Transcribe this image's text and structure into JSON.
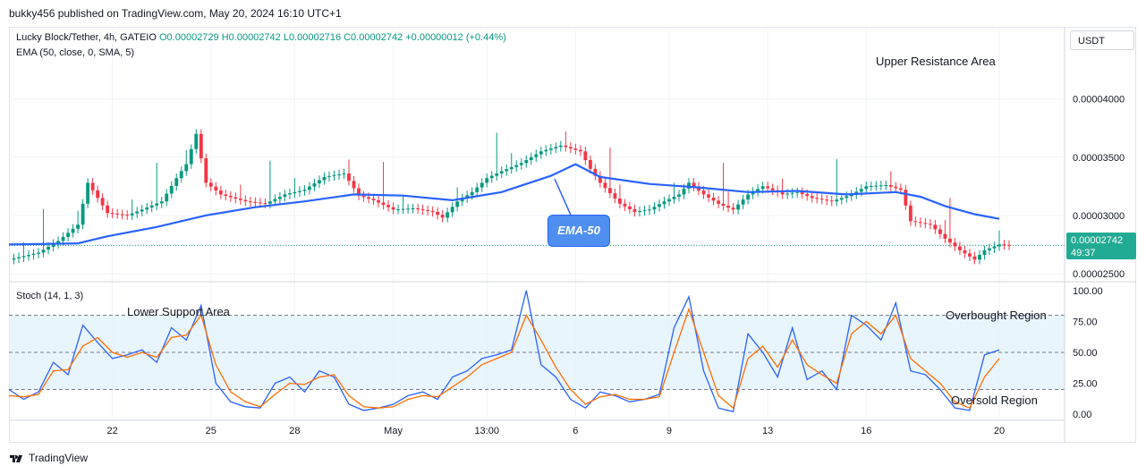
{
  "header": {
    "published": "bukky456 published on TradingView.com, May 20, 2024 16:10 UTC+1"
  },
  "legend": {
    "symbol": "Lucky Block/Tether, 4h, GATEIO",
    "ohlc": "O0.00002729 H0.00002742 L0.00002716 C0.00002742 +0.00000012 (+0.44%)",
    "indicator": "EMA (50, close, 0, SMA, 5)",
    "stoch": "Stoch (14, 1, 3)"
  },
  "currency_button": "USDT",
  "price_tag": {
    "price": "0.00002742",
    "countdown": "49:37"
  },
  "annotations": {
    "upper_resistance": "Upper Resistance Area",
    "lower_support": "Lower Support Area",
    "ema_callout": "EMA-50",
    "overbought": "Overbought Region",
    "oversold": "Oversold Region"
  },
  "footer": {
    "brand": "TradingView"
  },
  "colors": {
    "up": "#089981",
    "down": "#f23645",
    "ema": "#2962ff",
    "stoch_k": "#2962ff",
    "stoch_d": "#ff6d00",
    "band": "#e3f2fd"
  },
  "chart_data": [
    {
      "type": "candlestick",
      "title": "Lucky Block/Tether, 4h, GATEIO",
      "y_ticks": [
        "0.00004000",
        "0.00003500",
        "0.00003000",
        "0.00002500"
      ],
      "y_tick_values": [
        4e-05,
        3.5e-05,
        3e-05,
        2.5e-05
      ],
      "ylim": [
        2.43e-05,
        4.62e-05
      ],
      "x_ticks": [
        "22",
        "25",
        "28",
        "May",
        "13:00",
        "6",
        "9",
        "13",
        "16",
        "20"
      ],
      "x_tick_index": [
        21,
        41,
        58,
        78,
        97,
        115,
        134,
        154,
        174,
        201
      ],
      "last_close": 2.742e-05,
      "close_path": [
        [
          0,
          2.62
        ],
        [
          6,
          2.68
        ],
        [
          10,
          2.78
        ],
        [
          14,
          2.92
        ],
        [
          16,
          3.28
        ],
        [
          20,
          3.02
        ],
        [
          24,
          3.0
        ],
        [
          27,
          3.05
        ],
        [
          31,
          3.12
        ],
        [
          34,
          3.32
        ],
        [
          36,
          3.44
        ],
        [
          38,
          3.7
        ],
        [
          40,
          3.28
        ],
        [
          43,
          3.18
        ],
        [
          48,
          3.12
        ],
        [
          52,
          3.1
        ],
        [
          56,
          3.18
        ],
        [
          60,
          3.22
        ],
        [
          64,
          3.33
        ],
        [
          68,
          3.36
        ],
        [
          71,
          3.17
        ],
        [
          74,
          3.13
        ],
        [
          78,
          3.05
        ],
        [
          82,
          3.06
        ],
        [
          86,
          3.03
        ],
        [
          88,
          2.98
        ],
        [
          91,
          3.12
        ],
        [
          94,
          3.2
        ],
        [
          97,
          3.32
        ],
        [
          100,
          3.38
        ],
        [
          104,
          3.45
        ],
        [
          108,
          3.55
        ],
        [
          112,
          3.6
        ],
        [
          116,
          3.55
        ],
        [
          118,
          3.4
        ],
        [
          120,
          3.28
        ],
        [
          124,
          3.1
        ],
        [
          127,
          3.03
        ],
        [
          130,
          3.05
        ],
        [
          133,
          3.12
        ],
        [
          136,
          3.18
        ],
        [
          138,
          3.28
        ],
        [
          141,
          3.18
        ],
        [
          144,
          3.1
        ],
        [
          147,
          3.05
        ],
        [
          150,
          3.18
        ],
        [
          153,
          3.25
        ],
        [
          157,
          3.18
        ],
        [
          160,
          3.2
        ],
        [
          163,
          3.15
        ],
        [
          167,
          3.12
        ],
        [
          171,
          3.18
        ],
        [
          174,
          3.25
        ],
        [
          178,
          3.26
        ],
        [
          181,
          3.22
        ],
        [
          183,
          2.95
        ],
        [
          187,
          2.92
        ],
        [
          190,
          2.8
        ],
        [
          193,
          2.7
        ],
        [
          196,
          2.62
        ],
        [
          198,
          2.7
        ],
        [
          201,
          2.75
        ],
        [
          203,
          2.742
        ]
      ],
      "ema_50_path": [
        [
          0,
          2.75
        ],
        [
          14,
          2.76
        ],
        [
          20,
          2.82
        ],
        [
          30,
          2.9
        ],
        [
          40,
          3.0
        ],
        [
          50,
          3.07
        ],
        [
          60,
          3.12
        ],
        [
          70,
          3.18
        ],
        [
          80,
          3.17
        ],
        [
          90,
          3.13
        ],
        [
          100,
          3.2
        ],
        [
          110,
          3.34
        ],
        [
          115,
          3.44
        ],
        [
          120,
          3.33
        ],
        [
          130,
          3.27
        ],
        [
          140,
          3.24
        ],
        [
          150,
          3.2
        ],
        [
          160,
          3.21
        ],
        [
          170,
          3.18
        ],
        [
          180,
          3.2
        ],
        [
          185,
          3.16
        ],
        [
          190,
          3.08
        ],
        [
          196,
          3.01
        ],
        [
          201,
          2.97
        ]
      ],
      "ema_50_unit": "1e-5"
    },
    {
      "type": "line",
      "title": "Stoch (14, 1, 3)",
      "ylim": [
        -5,
        105
      ],
      "y_ticks": [
        "100.00",
        "75.00",
        "50.00",
        "25.00",
        "0.00"
      ],
      "y_tick_values": [
        100,
        75,
        50,
        25,
        0
      ],
      "bands": {
        "upper": 80,
        "middle": 50,
        "lower": 20
      },
      "series": [
        {
          "values": [
            [
              0,
              20
            ],
            [
              3,
              12
            ],
            [
              6,
              18
            ],
            [
              9,
              42
            ],
            [
              12,
              32
            ],
            [
              15,
              72
            ],
            [
              18,
              58
            ],
            [
              21,
              45
            ],
            [
              24,
              48
            ],
            [
              27,
              52
            ],
            [
              30,
              42
            ],
            [
              33,
              70
            ],
            [
              36,
              60
            ],
            [
              39,
              88
            ],
            [
              42,
              25
            ],
            [
              45,
              10
            ],
            [
              48,
              6
            ],
            [
              51,
              5
            ],
            [
              54,
              25
            ],
            [
              57,
              30
            ],
            [
              60,
              18
            ],
            [
              63,
              35
            ],
            [
              66,
              30
            ],
            [
              69,
              8
            ],
            [
              72,
              3
            ],
            [
              75,
              5
            ],
            [
              78,
              8
            ],
            [
              81,
              15
            ],
            [
              84,
              18
            ],
            [
              87,
              12
            ],
            [
              90,
              30
            ],
            [
              93,
              35
            ],
            [
              96,
              45
            ],
            [
              99,
              48
            ],
            [
              102,
              52
            ],
            [
              105,
              100
            ],
            [
              108,
              40
            ],
            [
              111,
              30
            ],
            [
              114,
              12
            ],
            [
              117,
              5
            ],
            [
              120,
              18
            ],
            [
              123,
              15
            ],
            [
              126,
              10
            ],
            [
              129,
              12
            ],
            [
              132,
              16
            ],
            [
              135,
              70
            ],
            [
              138,
              95
            ],
            [
              141,
              35
            ],
            [
              144,
              5
            ],
            [
              147,
              2
            ],
            [
              150,
              65
            ],
            [
              153,
              50
            ],
            [
              156,
              30
            ],
            [
              159,
              70
            ],
            [
              162,
              28
            ],
            [
              165,
              35
            ],
            [
              168,
              20
            ],
            [
              171,
              80
            ],
            [
              174,
              72
            ],
            [
              177,
              60
            ],
            [
              180,
              90
            ],
            [
              183,
              35
            ],
            [
              186,
              32
            ],
            [
              189,
              20
            ],
            [
              192,
              5
            ],
            [
              195,
              3
            ],
            [
              198,
              48
            ],
            [
              201,
              52
            ]
          ]
        },
        {
          "values": [
            [
              0,
              15
            ],
            [
              3,
              14
            ],
            [
              6,
              16
            ],
            [
              9,
              35
            ],
            [
              12,
              36
            ],
            [
              15,
              55
            ],
            [
              18,
              62
            ],
            [
              21,
              50
            ],
            [
              24,
              46
            ],
            [
              27,
              50
            ],
            [
              30,
              46
            ],
            [
              33,
              62
            ],
            [
              36,
              64
            ],
            [
              39,
              80
            ],
            [
              42,
              40
            ],
            [
              45,
              18
            ],
            [
              48,
              10
            ],
            [
              51,
              6
            ],
            [
              54,
              16
            ],
            [
              57,
              25
            ],
            [
              60,
              24
            ],
            [
              63,
              30
            ],
            [
              66,
              32
            ],
            [
              69,
              15
            ],
            [
              72,
              6
            ],
            [
              75,
              5
            ],
            [
              78,
              6
            ],
            [
              81,
              12
            ],
            [
              84,
              15
            ],
            [
              87,
              14
            ],
            [
              90,
              22
            ],
            [
              93,
              30
            ],
            [
              96,
              40
            ],
            [
              99,
              45
            ],
            [
              102,
              50
            ],
            [
              105,
              80
            ],
            [
              108,
              60
            ],
            [
              111,
              38
            ],
            [
              114,
              20
            ],
            [
              117,
              8
            ],
            [
              120,
              14
            ],
            [
              123,
              16
            ],
            [
              126,
              12
            ],
            [
              129,
              12
            ],
            [
              132,
              14
            ],
            [
              135,
              50
            ],
            [
              138,
              85
            ],
            [
              141,
              50
            ],
            [
              144,
              15
            ],
            [
              147,
              5
            ],
            [
              150,
              45
            ],
            [
              153,
              55
            ],
            [
              156,
              38
            ],
            [
              159,
              60
            ],
            [
              162,
              40
            ],
            [
              165,
              32
            ],
            [
              168,
              25
            ],
            [
              171,
              65
            ],
            [
              174,
              75
            ],
            [
              177,
              65
            ],
            [
              180,
              80
            ],
            [
              183,
              45
            ],
            [
              186,
              35
            ],
            [
              189,
              25
            ],
            [
              192,
              10
            ],
            [
              195,
              5
            ],
            [
              198,
              30
            ],
            [
              201,
              45
            ]
          ]
        }
      ]
    }
  ]
}
